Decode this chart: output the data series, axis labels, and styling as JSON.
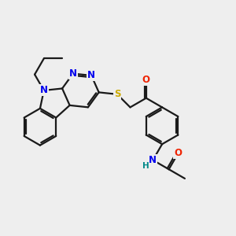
{
  "bg_color": "#eeeeee",
  "bond_color": "#1a1a1a",
  "N_color": "#0000ee",
  "S_color": "#ccaa00",
  "O_color": "#ee2200",
  "NH_color": "#0000ee",
  "H_color": "#008888",
  "line_width": 1.6,
  "font_size": 8.5,
  "figsize": [
    3.0,
    3.0
  ],
  "dpi": 100,
  "xlim": [
    -2.6,
    4.0
  ],
  "ylim": [
    -2.6,
    2.4
  ]
}
